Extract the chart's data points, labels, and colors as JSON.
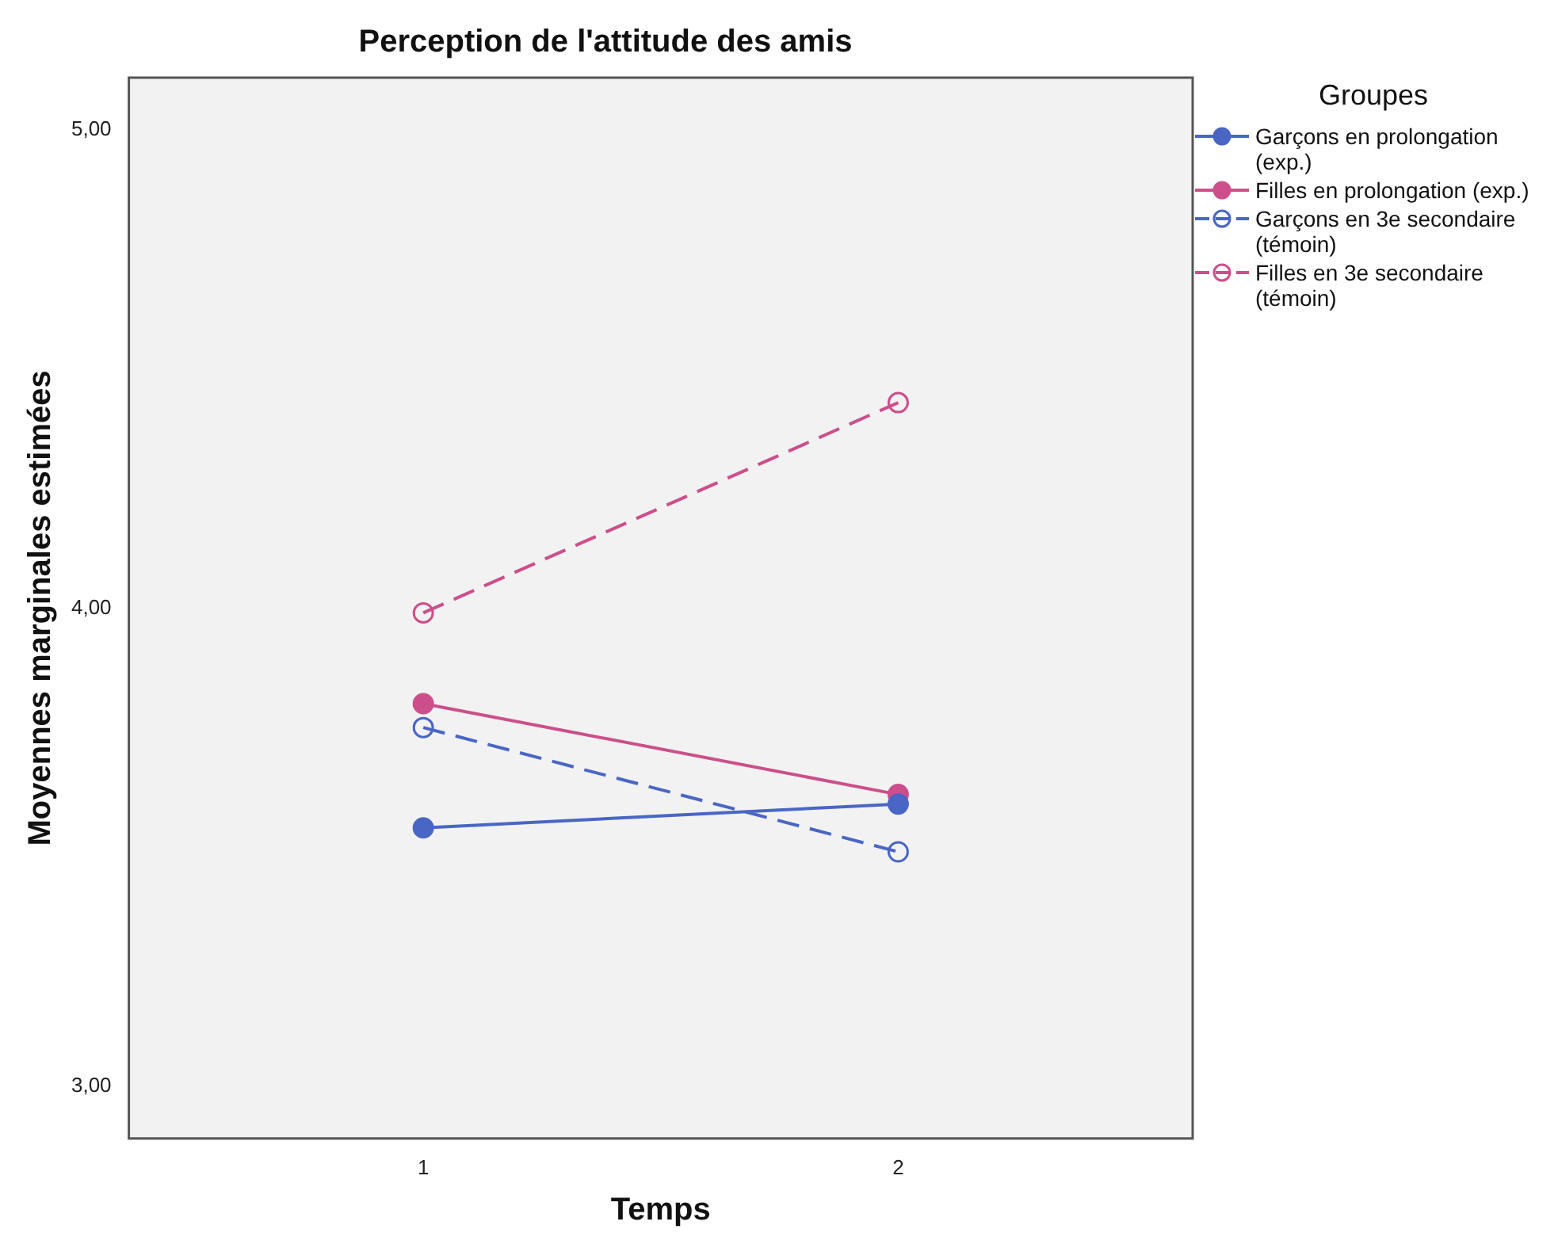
{
  "chart_data": {
    "type": "line",
    "title": "Perception de l'attitude des amis",
    "xlabel": "Temps",
    "ylabel": "Moyennes marginales estimées",
    "legend_title": "Groupes",
    "legend": "right",
    "grid": false,
    "marker": "circle",
    "x": [
      1,
      2
    ],
    "xlim": [
      0.38,
      2.62
    ],
    "xticks": [
      1,
      2
    ],
    "ylim": [
      2.89,
      5.11
    ],
    "yticks": [
      {
        "value": 3,
        "label": "3,00"
      },
      {
        "value": 4,
        "label": "4,00"
      },
      {
        "value": 5,
        "label": "5,00"
      }
    ],
    "series": [
      {
        "name": "Garçons en prolongation (exp.)",
        "color": "#4a66c4",
        "values": [
          3.54,
          3.59
        ],
        "line_style": "solid"
      },
      {
        "name": "Filles en prolongation (exp.)",
        "color": "#cc4f8c",
        "values": [
          3.8,
          3.61
        ],
        "line_style": "solid"
      },
      {
        "name": "Garçons en 3e secondaire (témoin)",
        "color": "#4a66c4",
        "values": [
          3.75,
          3.49
        ],
        "line_style": "dashed"
      },
      {
        "name": "Filles en 3e secondaire (témoin)",
        "color": "#cc4f8c",
        "values": [
          3.99,
          4.43
        ],
        "line_style": "dashed"
      }
    ]
  }
}
